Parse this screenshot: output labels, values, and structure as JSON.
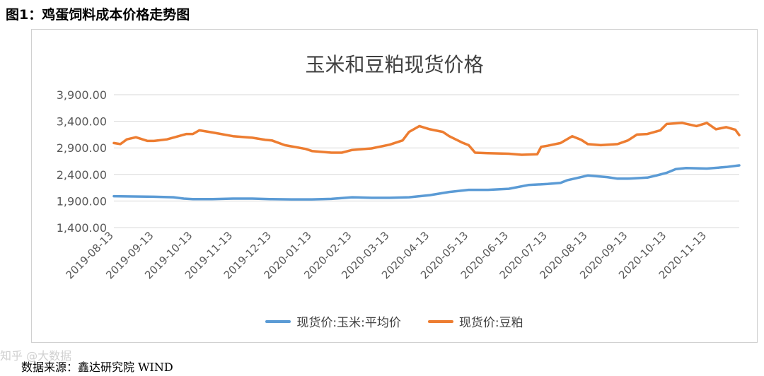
{
  "figure_title": "图1：鸡蛋饲料成本价格走势图",
  "source_text": "数据来源：鑫达研究院  WIND",
  "watermark": "知乎 @大数据",
  "colors": {
    "corn": "#5B9BD5",
    "soymeal": "#ED7D31",
    "grid": "#d9d9d9",
    "text": "#595959"
  },
  "chart_data": {
    "type": "line",
    "title": "玉米和豆粕现货价格",
    "xlabel": "",
    "ylabel": "",
    "ylim": [
      1400,
      3900
    ],
    "yticks": [
      "3,900.00",
      "3,400.00",
      "2,900.00",
      "2,400.00",
      "1,900.00",
      "1,400.00"
    ],
    "ytick_values": [
      3900,
      3400,
      2900,
      2400,
      1900,
      1400
    ],
    "xticks": [
      "2019-08-13",
      "2019-09-13",
      "2019-10-13",
      "2019-11-13",
      "2019-12-13",
      "2020-01-13",
      "2020-02-13",
      "2020-03-13",
      "2020-04-13",
      "2020-05-13",
      "2020-06-13",
      "2020-07-13",
      "2020-08-13",
      "2020-09-13",
      "2020-10-13",
      "2020-11-13"
    ],
    "xlim": [
      "2019-08-13",
      "2020-12-08"
    ],
    "grid": true,
    "legend_position": "bottom",
    "series": [
      {
        "name": "现货价:玉米:平均价",
        "color": "#5B9BD5",
        "points": [
          [
            "2019-08-13",
            1990
          ],
          [
            "2019-08-28",
            1985
          ],
          [
            "2019-09-13",
            1980
          ],
          [
            "2019-09-28",
            1970
          ],
          [
            "2019-10-06",
            1945
          ],
          [
            "2019-10-13",
            1935
          ],
          [
            "2019-10-28",
            1935
          ],
          [
            "2019-11-13",
            1945
          ],
          [
            "2019-11-28",
            1945
          ],
          [
            "2019-12-13",
            1935
          ],
          [
            "2019-12-28",
            1930
          ],
          [
            "2020-01-13",
            1930
          ],
          [
            "2020-01-28",
            1940
          ],
          [
            "2020-02-13",
            1970
          ],
          [
            "2020-02-28",
            1960
          ],
          [
            "2020-03-13",
            1960
          ],
          [
            "2020-03-28",
            1970
          ],
          [
            "2020-04-13",
            2010
          ],
          [
            "2020-04-28",
            2070
          ],
          [
            "2020-05-13",
            2110
          ],
          [
            "2020-05-28",
            2110
          ],
          [
            "2020-06-13",
            2130
          ],
          [
            "2020-06-28",
            2200
          ],
          [
            "2020-07-13",
            2220
          ],
          [
            "2020-07-23",
            2240
          ],
          [
            "2020-07-28",
            2290
          ],
          [
            "2020-08-06",
            2340
          ],
          [
            "2020-08-13",
            2380
          ],
          [
            "2020-08-28",
            2350
          ],
          [
            "2020-09-05",
            2320
          ],
          [
            "2020-09-13",
            2320
          ],
          [
            "2020-09-28",
            2340
          ],
          [
            "2020-10-05",
            2380
          ],
          [
            "2020-10-13",
            2430
          ],
          [
            "2020-10-20",
            2500
          ],
          [
            "2020-10-28",
            2520
          ],
          [
            "2020-11-13",
            2510
          ],
          [
            "2020-11-28",
            2540
          ],
          [
            "2020-12-08",
            2570
          ]
        ]
      },
      {
        "name": "现货价:豆粕",
        "color": "#ED7D31",
        "points": [
          [
            "2019-08-13",
            2990
          ],
          [
            "2019-08-18",
            2970
          ],
          [
            "2019-08-23",
            3060
          ],
          [
            "2019-08-30",
            3100
          ],
          [
            "2019-09-08",
            3030
          ],
          [
            "2019-09-13",
            3030
          ],
          [
            "2019-09-23",
            3060
          ],
          [
            "2019-10-08",
            3160
          ],
          [
            "2019-10-13",
            3160
          ],
          [
            "2019-10-18",
            3230
          ],
          [
            "2019-10-28",
            3190
          ],
          [
            "2019-11-13",
            3120
          ],
          [
            "2019-11-28",
            3090
          ],
          [
            "2019-12-08",
            3050
          ],
          [
            "2019-12-13",
            3040
          ],
          [
            "2019-12-23",
            2950
          ],
          [
            "2020-01-08",
            2880
          ],
          [
            "2020-01-13",
            2840
          ],
          [
            "2020-01-28",
            2810
          ],
          [
            "2020-02-05",
            2810
          ],
          [
            "2020-02-13",
            2860
          ],
          [
            "2020-02-28",
            2890
          ],
          [
            "2020-03-13",
            2960
          ],
          [
            "2020-03-23",
            3040
          ],
          [
            "2020-03-28",
            3200
          ],
          [
            "2020-04-05",
            3310
          ],
          [
            "2020-04-13",
            3250
          ],
          [
            "2020-04-23",
            3200
          ],
          [
            "2020-04-28",
            3120
          ],
          [
            "2020-05-08",
            3000
          ],
          [
            "2020-05-13",
            2950
          ],
          [
            "2020-05-18",
            2810
          ],
          [
            "2020-05-28",
            2800
          ],
          [
            "2020-06-13",
            2790
          ],
          [
            "2020-06-23",
            2770
          ],
          [
            "2020-07-05",
            2780
          ],
          [
            "2020-07-08",
            2920
          ],
          [
            "2020-07-13",
            2940
          ],
          [
            "2020-07-23",
            2990
          ],
          [
            "2020-08-01",
            3120
          ],
          [
            "2020-08-08",
            3050
          ],
          [
            "2020-08-13",
            2970
          ],
          [
            "2020-08-23",
            2950
          ],
          [
            "2020-09-05",
            2970
          ],
          [
            "2020-09-13",
            3040
          ],
          [
            "2020-09-20",
            3150
          ],
          [
            "2020-09-28",
            3160
          ],
          [
            "2020-10-08",
            3230
          ],
          [
            "2020-10-13",
            3350
          ],
          [
            "2020-10-25",
            3370
          ],
          [
            "2020-11-05",
            3310
          ],
          [
            "2020-11-13",
            3370
          ],
          [
            "2020-11-20",
            3250
          ],
          [
            "2020-11-28",
            3290
          ],
          [
            "2020-12-05",
            3240
          ],
          [
            "2020-12-08",
            3140
          ]
        ]
      }
    ]
  }
}
